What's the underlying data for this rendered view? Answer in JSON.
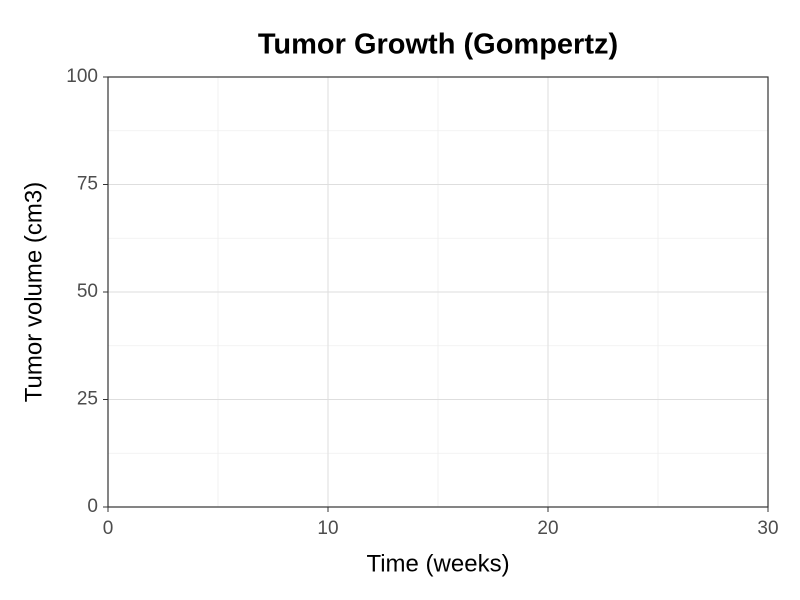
{
  "chart_data": {
    "type": "line",
    "title": "Tumor Growth (Gompertz)",
    "x_label": "Time (weeks)",
    "y_label": "Tumor volume (cm3)",
    "series": [],
    "xlim": [
      0,
      30
    ],
    "xticks": [
      0,
      10,
      20,
      30
    ],
    "ylim": [
      0,
      100
    ],
    "yticks": [
      0,
      25,
      50,
      75,
      100
    ],
    "grid": true
  }
}
